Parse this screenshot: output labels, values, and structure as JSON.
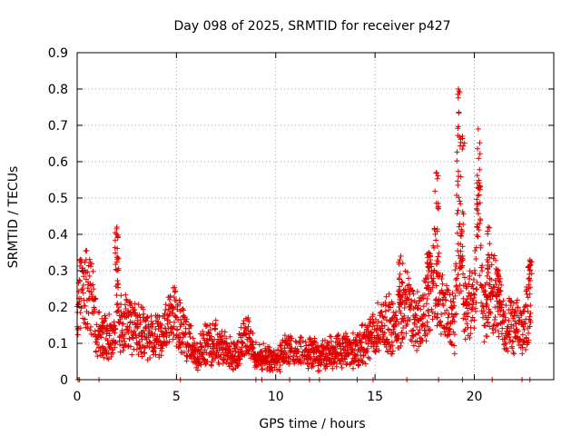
{
  "chart_data": {
    "type": "scatter",
    "title": "Day 098 of 2025, SRMTID for receiver p427",
    "xlabel": "GPS time / hours",
    "ylabel": "SRMTID / TECUs",
    "xlim": [
      0,
      24
    ],
    "ylim": [
      0,
      0.9
    ],
    "x_ticks": [
      0,
      5,
      10,
      15,
      20
    ],
    "x_tick_labels": [
      "0",
      "5",
      "10",
      "15",
      "20"
    ],
    "y_ticks": [
      0,
      0.1,
      0.2,
      0.3,
      0.4,
      0.5,
      0.6,
      0.7,
      0.8,
      0.9
    ],
    "y_tick_labels": [
      "0",
      "0.1",
      "0.2",
      "0.3",
      "0.4",
      "0.5",
      "0.6",
      "0.7",
      "0.8",
      "0.9"
    ],
    "grid": true,
    "marker": "+",
    "color": "#e00000",
    "trend": [
      [
        0.0,
        0.22
      ],
      [
        0.5,
        0.25
      ],
      [
        0.8,
        0.2
      ],
      [
        1.0,
        0.14
      ],
      [
        1.5,
        0.11
      ],
      [
        1.9,
        0.12
      ],
      [
        2.0,
        0.3
      ],
      [
        2.1,
        0.16
      ],
      [
        2.5,
        0.15
      ],
      [
        3.0,
        0.14
      ],
      [
        3.5,
        0.12
      ],
      [
        4.0,
        0.12
      ],
      [
        4.5,
        0.14
      ],
      [
        5.0,
        0.18
      ],
      [
        5.5,
        0.12
      ],
      [
        6.0,
        0.06
      ],
      [
        6.5,
        0.1
      ],
      [
        7.0,
        0.1
      ],
      [
        7.5,
        0.08
      ],
      [
        8.0,
        0.06
      ],
      [
        8.5,
        0.13
      ],
      [
        9.0,
        0.06
      ],
      [
        9.5,
        0.06
      ],
      [
        10.0,
        0.05
      ],
      [
        10.5,
        0.08
      ],
      [
        11.0,
        0.07
      ],
      [
        11.5,
        0.07
      ],
      [
        12.0,
        0.07
      ],
      [
        12.5,
        0.07
      ],
      [
        13.0,
        0.08
      ],
      [
        13.5,
        0.08
      ],
      [
        14.0,
        0.08
      ],
      [
        14.5,
        0.1
      ],
      [
        15.0,
        0.13
      ],
      [
        15.5,
        0.16
      ],
      [
        16.0,
        0.14
      ],
      [
        16.5,
        0.22
      ],
      [
        17.0,
        0.16
      ],
      [
        17.5,
        0.18
      ],
      [
        18.0,
        0.3
      ],
      [
        18.5,
        0.18
      ],
      [
        19.0,
        0.15
      ],
      [
        19.2,
        0.45
      ],
      [
        19.5,
        0.2
      ],
      [
        20.0,
        0.22
      ],
      [
        20.2,
        0.45
      ],
      [
        20.5,
        0.18
      ],
      [
        21.0,
        0.25
      ],
      [
        21.5,
        0.15
      ],
      [
        22.0,
        0.14
      ],
      [
        22.5,
        0.14
      ],
      [
        22.8,
        0.22
      ]
    ],
    "spikes": [
      {
        "x": 2.0,
        "peak": 0.42
      },
      {
        "x": 16.3,
        "peak": 0.34
      },
      {
        "x": 17.7,
        "peak": 0.35
      },
      {
        "x": 18.1,
        "peak": 0.57
      },
      {
        "x": 19.2,
        "peak": 0.8
      },
      {
        "x": 19.4,
        "peak": 0.67
      },
      {
        "x": 20.2,
        "peak": 0.69
      },
      {
        "x": 20.7,
        "peak": 0.42
      },
      {
        "x": 21.2,
        "peak": 0.3
      },
      {
        "x": 22.8,
        "peak": 0.33
      }
    ],
    "zero_points": [
      0.05,
      0.12,
      1.1,
      5.2,
      9.0,
      9.3,
      10.7,
      11.7,
      12.2,
      14.1,
      14.9,
      16.6,
      18.2,
      19.4,
      20.9,
      22.4,
      22.8
    ],
    "gap_hours": [
      [
        10.8,
        11.6
      ]
    ]
  }
}
